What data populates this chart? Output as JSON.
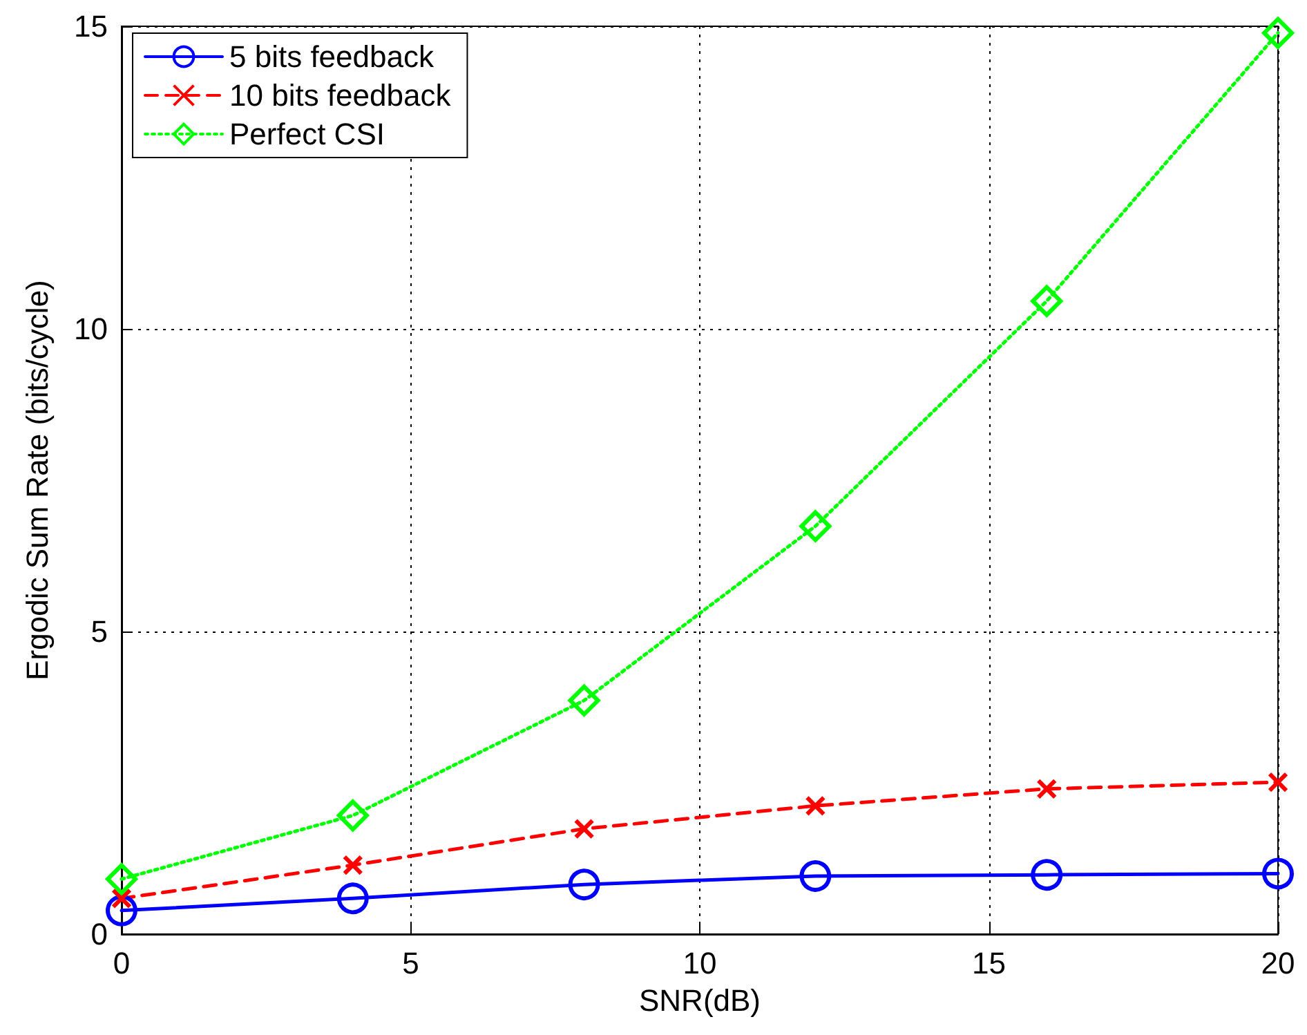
{
  "chart_data": {
    "type": "line",
    "xlabel": "SNR(dB)",
    "ylabel": "Ergodic Sum Rate (bits/cycle)",
    "x": [
      0,
      4,
      8,
      12,
      16,
      20
    ],
    "series": [
      {
        "name": "5 bits feedback",
        "color": "#0000ff",
        "marker": "circle",
        "line_style": "solid",
        "values": [
          0.39,
          0.59,
          0.82,
          0.96,
          0.98,
          1.0
        ]
      },
      {
        "name": "10 bits feedback",
        "color": "#ff0000",
        "marker": "cross",
        "line_style": "dashed",
        "values": [
          0.59,
          1.14,
          1.74,
          2.12,
          2.4,
          2.51
        ]
      },
      {
        "name": "Perfect CSI",
        "color": "#00ff00",
        "marker": "diamond",
        "line_style": "dotted",
        "values": [
          0.91,
          1.96,
          3.86,
          6.74,
          10.46,
          14.89
        ]
      }
    ],
    "xlim": [
      0,
      20
    ],
    "xticks": [
      0,
      5,
      10,
      15,
      20
    ],
    "ylim": [
      0,
      15
    ],
    "yticks": [
      0,
      5,
      10,
      15
    ],
    "grid": true,
    "legend": "top left"
  }
}
